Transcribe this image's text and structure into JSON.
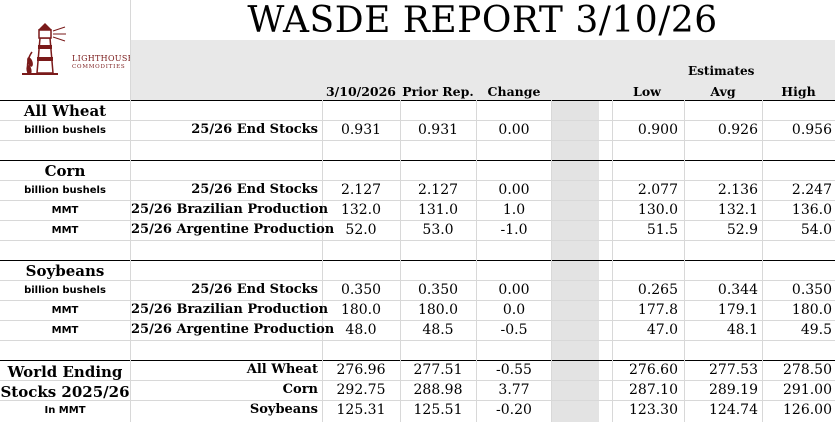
{
  "title": "WASDE REPORT 3/10/26",
  "logo": {
    "line1": "LIGHTHOUSE",
    "line2": "COMMODITIES"
  },
  "header": {
    "estimates": "Estimates",
    "cols": [
      "3/10/2026",
      "Prior Rep.",
      "Change",
      "Low",
      "Avg",
      "High"
    ]
  },
  "sections": [
    {
      "title": "All Wheat",
      "rows": [
        {
          "unit": "billion bushels",
          "label": "25/26 End Stocks",
          "values": [
            "0.931",
            "0.931",
            "0.00",
            "0.900",
            "0.926",
            "0.956"
          ]
        }
      ]
    },
    {
      "title": "Corn",
      "rows": [
        {
          "unit": "billion bushels",
          "label": "25/26 End Stocks",
          "values": [
            "2.127",
            "2.127",
            "0.00",
            "2.077",
            "2.136",
            "2.247"
          ]
        },
        {
          "unit": "MMT",
          "label": "25/26 Brazilian Production",
          "values": [
            "132.0",
            "131.0",
            "1.0",
            "130.0",
            "132.1",
            "136.0"
          ]
        },
        {
          "unit": "MMT",
          "label": "25/26 Argentine Production",
          "values": [
            "52.0",
            "53.0",
            "-1.0",
            "51.5",
            "52.9",
            "54.0"
          ]
        }
      ]
    },
    {
      "title": "Soybeans",
      "rows": [
        {
          "unit": "billion bushels",
          "label": "25/26 End Stocks",
          "values": [
            "0.350",
            "0.350",
            "0.00",
            "0.265",
            "0.344",
            "0.350"
          ]
        },
        {
          "unit": "MMT",
          "label": "25/26 Brazilian Production",
          "values": [
            "180.0",
            "180.0",
            "0.0",
            "177.8",
            "179.1",
            "180.0"
          ]
        },
        {
          "unit": "MMT",
          "label": "25/26 Argentine Production",
          "values": [
            "48.0",
            "48.5",
            "-0.5",
            "47.0",
            "48.1",
            "49.5"
          ]
        }
      ]
    }
  ],
  "world": {
    "line1": "World Ending",
    "line2": "Stocks 2025/26",
    "unit": "In MMT",
    "rows": [
      {
        "label": "All Wheat",
        "values": [
          "276.96",
          "277.51",
          "-0.55",
          "276.60",
          "277.53",
          "278.50"
        ]
      },
      {
        "label": "Corn",
        "values": [
          "292.75",
          "288.98",
          "3.77",
          "287.10",
          "289.19",
          "291.00"
        ]
      },
      {
        "label": "Soybeans",
        "values": [
          "125.31",
          "125.51",
          "-0.20",
          "123.30",
          "124.74",
          "126.00"
        ]
      }
    ]
  },
  "colors": {
    "header_bg": "#e8e8e8",
    "separator_col": "#e3e3e3",
    "logo_red": "#7a1a1a"
  }
}
